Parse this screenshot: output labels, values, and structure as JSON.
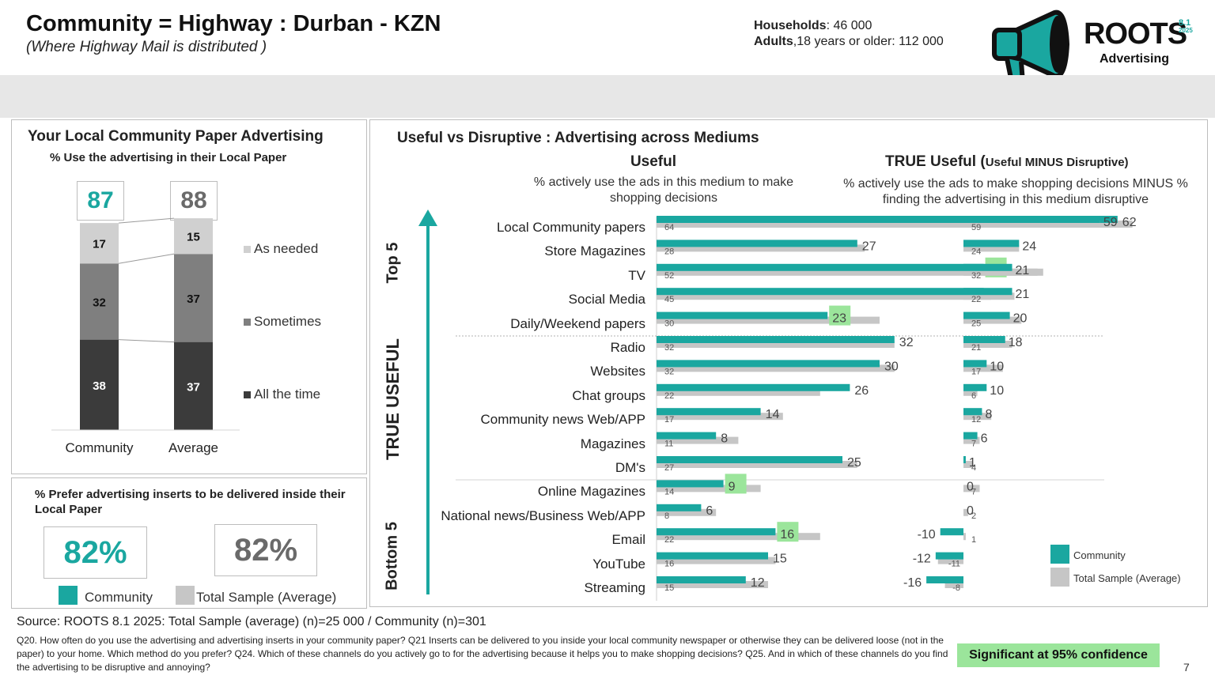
{
  "header": {
    "title": "Community = Highway : Durban - KZN",
    "subtitle": "(Where Highway Mail is distributed )",
    "households_label": "Households",
    "households_value": ": 46 000",
    "adults_label": "Adults",
    "adults_value": ",18 years or older: 112 000"
  },
  "logo": {
    "name": "ROOTS",
    "version_top": "8.1",
    "version_bottom": "2025",
    "tagline": "Advertising"
  },
  "colors": {
    "community": "#1aa7a0",
    "total": "#c6c6c6",
    "significant": "#9be59b",
    "all_the_time": "#3b3b3b",
    "sometimes": "#7f7f7f",
    "as_needed": "#d0d0d0"
  },
  "panel_local": {
    "title": "Your Local Community Paper Advertising",
    "subtitle": "% Use the advertising in their Local Paper",
    "totals": [
      "87",
      "88"
    ]
  },
  "panel_inserts": {
    "title": "% Prefer advertising inserts to be delivered inside their Local Paper",
    "community_value": "82%",
    "average_value": "82%",
    "legend_community": "Community",
    "legend_total": "Total Sample (Average)"
  },
  "panel_useful": {
    "title": "Useful vs Disruptive : Advertising across Mediums",
    "useful_heading": "Useful",
    "useful_desc": "% actively use the ads in this medium to make shopping decisions",
    "true_heading_main": "TRUE Useful (",
    "true_heading_small": "Useful MINUS Disruptive)",
    "true_desc": "% actively use the ads to make shopping decisions MINUS % finding the advertising in this medium disruptive",
    "top_label": "Top 5",
    "mid_label": "TRUE USEFUL",
    "bottom_label": "Bottom 5",
    "legend_community": "Community",
    "legend_total": "Total Sample (Average)"
  },
  "chart_data": [
    {
      "type": "bar",
      "stacked": true,
      "title": "Your Local Community Paper Advertising",
      "subtitle": "% Use the advertising in their Local Paper",
      "categories": [
        "Community",
        "Average"
      ],
      "totals": [
        87,
        88
      ],
      "series": [
        {
          "name": "All the time",
          "values": [
            38,
            37
          ]
        },
        {
          "name": "Sometimes",
          "values": [
            32,
            37
          ]
        },
        {
          "name": "As needed",
          "values": [
            17,
            15
          ]
        }
      ]
    },
    {
      "type": "bar",
      "orientation": "horizontal",
      "title": "Useful",
      "subtitle": "% actively use the ads in this medium to make shopping decisions",
      "categories": [
        "Local Community papers",
        "Store Magazines",
        "TV",
        "Social Media",
        "Daily/Weekend papers",
        "Radio",
        "Websites",
        "Chat groups",
        "Community news Web/APP",
        "Magazines",
        "DM's",
        "Online Magazines",
        "National news/Business Web/APP",
        "Email",
        "YouTube",
        "Streaming"
      ],
      "series": [
        {
          "name": "Community",
          "values": [
            62,
            27,
            44,
            44,
            23,
            32,
            30,
            26,
            14,
            8,
            25,
            9,
            6,
            16,
            15,
            12
          ]
        },
        {
          "name": "Total Sample (Average)",
          "values": [
            64,
            28,
            52,
            45,
            30,
            32,
            32,
            22,
            17,
            11,
            27,
            14,
            8,
            22,
            16,
            15
          ]
        }
      ],
      "significant": [
        "TV",
        "Daily/Weekend papers",
        "Online Magazines",
        "Email"
      ]
    },
    {
      "type": "bar",
      "orientation": "horizontal",
      "title": "TRUE Useful (Useful MINUS Disruptive)",
      "subtitle": "% actively use the ads to make shopping decisions MINUS % finding the advertising in this medium disruptive",
      "categories": [
        "Local Community papers",
        "Store Magazines",
        "TV",
        "Social Media",
        "Daily/Weekend papers",
        "Radio",
        "Websites",
        "Chat groups",
        "Community news Web/APP",
        "Magazines",
        "DM's",
        "Online Magazines",
        "National news/Business Web/APP",
        "Email",
        "YouTube",
        "Streaming"
      ],
      "series": [
        {
          "name": "Community",
          "values": [
            59,
            24,
            21,
            21,
            20,
            18,
            10,
            10,
            8,
            6,
            1,
            0,
            0,
            -10,
            -12,
            -16
          ]
        },
        {
          "name": "Total Sample (Average)",
          "values": [
            59,
            24,
            32,
            22,
            25,
            21,
            17,
            6,
            12,
            7,
            4,
            7,
            2,
            1,
            -11,
            -8
          ]
        }
      ]
    }
  ],
  "footer": {
    "source": "Source: ROOTS 8.1 2025:  Total Sample (average)  (n)=25 000 / Community (n)=301",
    "questions": "Q20. How often do you use the advertising and advertising inserts in your community paper? Q21 Inserts can be delivered to you inside your local community newspaper or otherwise they can be delivered loose (not in the paper) to your home.  Which method do you prefer? Q24. Which of these channels do you actively go to for the advertising because it helps you to make shopping decisions? Q25. And in which of these channels do you find the advertising to be disruptive and annoying?",
    "significance": "Significant at 95% confidence",
    "page": "7"
  }
}
